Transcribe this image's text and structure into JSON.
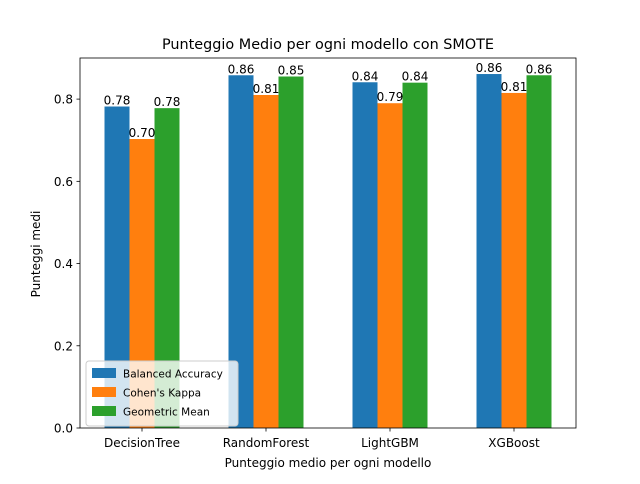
{
  "chart_data": {
    "type": "bar",
    "title": "Punteggio Medio per ogni modello con SMOTE",
    "xlabel": "Punteggio medio per ogni modello",
    "ylabel": "Punteggi medi",
    "categories": [
      "DecisionTree",
      "RandomForest",
      "LightGBM",
      "XGBoost"
    ],
    "series": [
      {
        "name": "Balanced Accuracy",
        "color": "#1f77b4",
        "values": [
          0.782,
          0.858,
          0.841,
          0.861
        ],
        "labels": [
          "0.78",
          "0.86",
          "0.84",
          "0.86"
        ]
      },
      {
        "name": "Cohen's Kappa",
        "color": "#ff7f0e",
        "values": [
          0.703,
          0.81,
          0.79,
          0.815
        ],
        "labels": [
          "0.70",
          "0.81",
          "0.79",
          "0.81"
        ]
      },
      {
        "name": "Geometric Mean",
        "color": "#2ca02c",
        "values": [
          0.778,
          0.855,
          0.84,
          0.858
        ],
        "labels": [
          "0.78",
          "0.85",
          "0.84",
          "0.86"
        ]
      }
    ],
    "ylim": [
      0,
      0.9
    ],
    "yticks": [
      0.0,
      0.2,
      0.4,
      0.6,
      0.8
    ],
    "ytick_labels": [
      "0.0",
      "0.2",
      "0.4",
      "0.6",
      "0.8"
    ],
    "grid": false,
    "legend_position": "lower-left"
  }
}
